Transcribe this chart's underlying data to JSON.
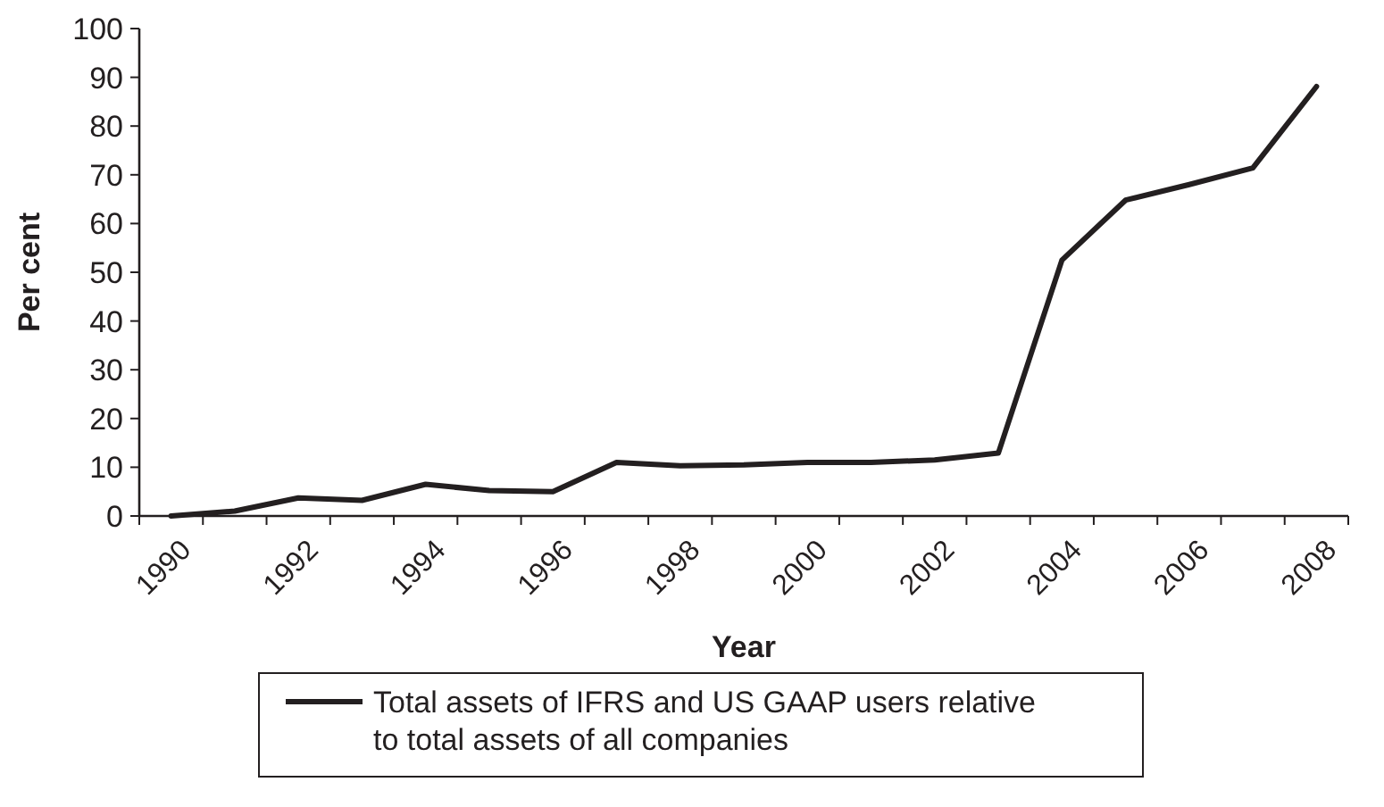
{
  "chart_data": {
    "type": "line",
    "xlabel": "Year",
    "ylabel": "Per cent",
    "categories": [
      "1990",
      null,
      "1992",
      null,
      "1994",
      null,
      "1996",
      null,
      "1998",
      null,
      "2000",
      null,
      "2002",
      null,
      "2004",
      null,
      "2006",
      null,
      "2008"
    ],
    "series": [
      {
        "name": "Total assets of IFRS and US GAAP users relative to total assets of all companies",
        "color": "#231f20",
        "values": [
          0,
          1,
          3.7,
          3.2,
          6.5,
          5.2,
          5,
          11,
          10.3,
          10.5,
          11,
          11,
          11.5,
          12.9,
          52.5,
          64.8,
          68,
          71.4,
          88.1
        ]
      }
    ],
    "ylim": [
      0,
      100
    ],
    "yticks": [
      0,
      10,
      20,
      30,
      40,
      50,
      60,
      70,
      80,
      90,
      100
    ],
    "grid": false,
    "legend": "bottom",
    "marker": "none",
    "line_style": "solid"
  }
}
